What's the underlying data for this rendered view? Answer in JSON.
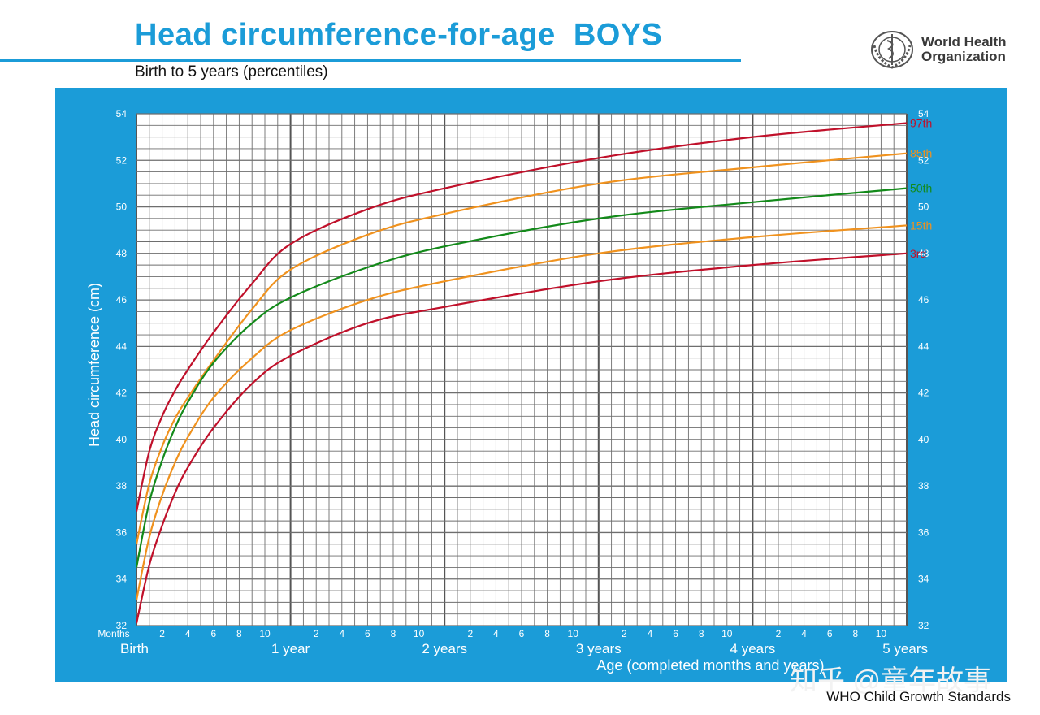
{
  "header": {
    "title": "Head circumference-for-age  BOYS",
    "subtitle": "Birth to 5 years (percentiles)",
    "org_line1": "World Health",
    "org_line2": "Organization"
  },
  "watermark": "知乎 @童年故事",
  "footer": "WHO Child Growth Standards",
  "colors": {
    "brand": "#1b9cd8",
    "p3_97": "#c0102a",
    "p15_85": "#f0921e",
    "p50": "#138a1a"
  },
  "chart_data": {
    "type": "line",
    "title": "Head circumference-for-age  BOYS",
    "subtitle": "Birth to 5 years (percentiles)",
    "xlabel": "Age (completed months and years)",
    "ylabel": "Head circumference (cm)",
    "x_unit_label": "Months",
    "xlim": [
      0,
      60
    ],
    "ylim": [
      32,
      54
    ],
    "yticks": [
      32,
      34,
      36,
      38,
      40,
      42,
      44,
      46,
      48,
      50,
      52,
      54
    ],
    "month_tick_labels": [
      "2",
      "4",
      "6",
      "8",
      "10"
    ],
    "year_labels": [
      "Birth",
      "1 year",
      "2 years",
      "3 years",
      "4 years",
      "5 years"
    ],
    "grid": true,
    "series": [
      {
        "name": "97th",
        "color": "#c0102a",
        "x": [
          0,
          1,
          2,
          3,
          4,
          6,
          9,
          12,
          18,
          24,
          36,
          48,
          60
        ],
        "y": [
          36.9,
          39.5,
          41.0,
          42.1,
          43.0,
          44.6,
          46.7,
          48.4,
          49.9,
          50.8,
          52.1,
          53.0,
          53.6
        ]
      },
      {
        "name": "85th",
        "color": "#f0921e",
        "x": [
          0,
          1,
          2,
          3,
          4,
          6,
          9,
          12,
          18,
          24,
          36,
          48,
          60
        ],
        "y": [
          35.5,
          38.1,
          39.7,
          40.9,
          41.8,
          43.4,
          45.6,
          47.3,
          48.8,
          49.7,
          51.0,
          51.7,
          52.3
        ]
      },
      {
        "name": "50th",
        "color": "#138a1a",
        "x": [
          0,
          1,
          2,
          3,
          4,
          6,
          9,
          12,
          18,
          24,
          36,
          48,
          60
        ],
        "y": [
          34.5,
          37.3,
          39.1,
          40.5,
          41.6,
          43.3,
          45.0,
          46.1,
          47.4,
          48.3,
          49.5,
          50.2,
          50.8
        ]
      },
      {
        "name": "15th",
        "color": "#f0921e",
        "x": [
          0,
          1,
          2,
          3,
          4,
          6,
          9,
          12,
          18,
          24,
          36,
          48,
          60
        ],
        "y": [
          33.1,
          35.8,
          37.6,
          39.0,
          40.1,
          41.8,
          43.5,
          44.7,
          46.0,
          46.8,
          48.0,
          48.7,
          49.2
        ]
      },
      {
        "name": "3rd",
        "color": "#c0102a",
        "x": [
          0,
          1,
          2,
          3,
          4,
          6,
          9,
          12,
          18,
          24,
          36,
          48,
          60
        ],
        "y": [
          32.1,
          34.6,
          36.3,
          37.7,
          38.8,
          40.5,
          42.4,
          43.6,
          45.0,
          45.7,
          46.8,
          47.5,
          48.0
        ]
      }
    ]
  }
}
